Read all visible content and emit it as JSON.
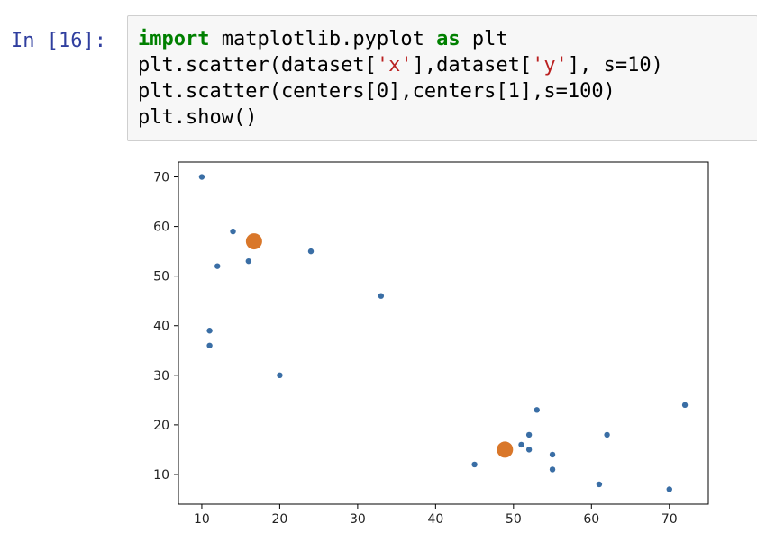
{
  "cell": {
    "prompt": "In [16]:",
    "code_lines": [
      {
        "parts": [
          {
            "t": "import",
            "c": "kw"
          },
          {
            "t": " matplotlib.pyplot ",
            "c": ""
          },
          {
            "t": "as",
            "c": "kw"
          },
          {
            "t": " plt",
            "c": ""
          }
        ]
      },
      {
        "parts": [
          {
            "t": "plt.scatter(dataset[",
            "c": ""
          },
          {
            "t": "'x'",
            "c": "str"
          },
          {
            "t": "],dataset[",
            "c": ""
          },
          {
            "t": "'y'",
            "c": "str"
          },
          {
            "t": "], s=10)",
            "c": ""
          }
        ]
      },
      {
        "parts": [
          {
            "t": "plt.scatter(centers[0],centers[1],s=100)",
            "c": ""
          }
        ]
      },
      {
        "parts": [
          {
            "t": "plt.show()",
            "c": ""
          }
        ]
      }
    ]
  },
  "chart_data": {
    "type": "scatter",
    "xlim": [
      7.0,
      75.0
    ],
    "ylim": [
      4.0,
      73.0
    ],
    "x_ticks": [
      10,
      20,
      30,
      40,
      50,
      60,
      70
    ],
    "y_ticks": [
      10,
      20,
      30,
      40,
      50,
      60,
      70
    ],
    "grid": false,
    "series": [
      {
        "color": "#3a6ea5",
        "marker_size": "s=10",
        "points": [
          {
            "x": 10,
            "y": 70
          },
          {
            "x": 14,
            "y": 59
          },
          {
            "x": 12,
            "y": 52
          },
          {
            "x": 16,
            "y": 53
          },
          {
            "x": 24,
            "y": 55
          },
          {
            "x": 33,
            "y": 46
          },
          {
            "x": 11,
            "y": 39
          },
          {
            "x": 11,
            "y": 36
          },
          {
            "x": 20,
            "y": 30
          },
          {
            "x": 45,
            "y": 12
          },
          {
            "x": 51,
            "y": 16
          },
          {
            "x": 52,
            "y": 18
          },
          {
            "x": 52,
            "y": 15
          },
          {
            "x": 53,
            "y": 23
          },
          {
            "x": 55,
            "y": 14
          },
          {
            "x": 55,
            "y": 11
          },
          {
            "x": 61,
            "y": 8
          },
          {
            "x": 62,
            "y": 18
          },
          {
            "x": 70,
            "y": 7
          },
          {
            "x": 72,
            "y": 24
          }
        ]
      },
      {
        "color": "#d9772a",
        "marker_size": "s=100",
        "points": [
          {
            "x": 16.7,
            "y": 57.0
          },
          {
            "x": 48.9,
            "y": 15.0
          }
        ]
      }
    ]
  }
}
